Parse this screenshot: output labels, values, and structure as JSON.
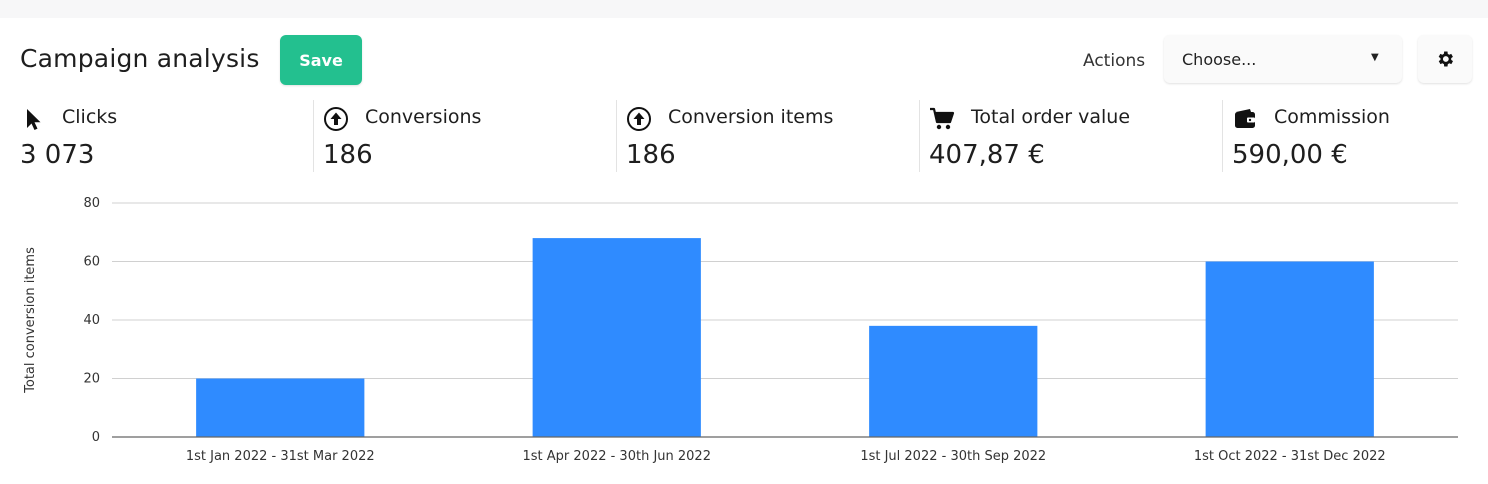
{
  "header": {
    "title": "Campaign analysis",
    "save_label": "Save",
    "actions_label": "Actions",
    "select": {
      "value": "Choose..."
    },
    "settings_icon": "gear-icon"
  },
  "colors": {
    "save": "#23c08f",
    "bar": "#2f8bff",
    "grid": "#d0d0d0"
  },
  "metrics": [
    {
      "icon": "cursor-icon",
      "label": "Clicks",
      "value": "3 073"
    },
    {
      "icon": "arrow-up-circle-icon",
      "label": "Conversions",
      "value": "186"
    },
    {
      "icon": "arrow-up-circle-icon",
      "label": "Conversion items",
      "value": "186"
    },
    {
      "icon": "cart-icon",
      "label": "Total order value",
      "value": "407,87 €"
    },
    {
      "icon": "wallet-icon",
      "label": "Commission",
      "value": "590,00 €"
    }
  ],
  "chart_data": {
    "type": "bar",
    "categories": [
      "1st Jan 2022 - 31st Mar 2022",
      "1st Apr 2022 - 30th Jun 2022",
      "1st Jul 2022 - 30th Sep 2022",
      "1st Oct 2022 - 31st Dec 2022"
    ],
    "values": [
      20,
      68,
      38,
      60
    ],
    "ylabel": "Total conversion items",
    "ylim": [
      0,
      80
    ],
    "yticks": [
      0,
      20,
      40,
      60,
      80
    ],
    "grid": true
  }
}
